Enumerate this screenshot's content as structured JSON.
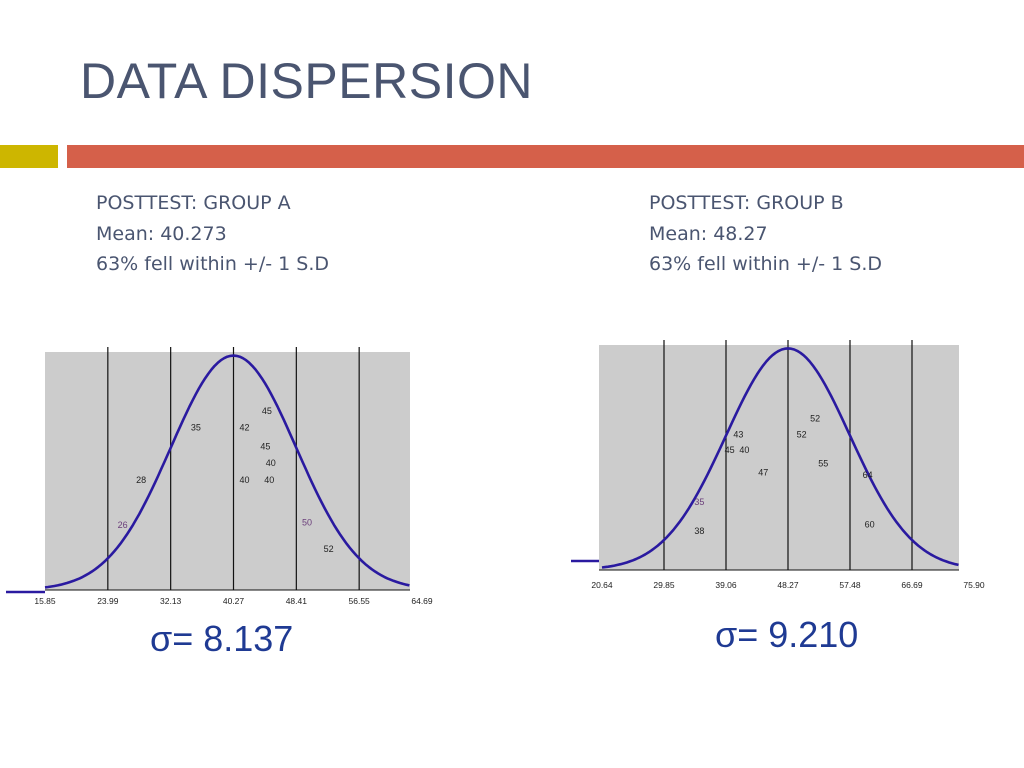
{
  "slide": {
    "title": "DATA DISPERSION"
  },
  "colors": {
    "title_text": "#4a5570",
    "accent_gold": "#cdb600",
    "accent_orange": "#d5604a",
    "plot_bg": "#cccccc",
    "curve": "#2a1aa0",
    "sigma_text": "#1f3a93"
  },
  "group_a": {
    "heading": "POSTTEST: GROUP A",
    "mean_label": "Mean: 40.273",
    "within_label": "63% fell within +/- 1 S.D",
    "sigma_label": "σ= 8.137"
  },
  "group_b": {
    "heading": "POSTTEST: GROUP B",
    "mean_label": "Mean: 48.27",
    "within_label": "63% fell within +/- 1 S.D",
    "sigma_label": "σ= 9.210"
  },
  "chart_data": [
    {
      "type": "line",
      "description_of_series": "normal distribution curve with plotted scores",
      "mean": 40.27,
      "sd": 8.137,
      "xlim": [
        15.85,
        64.69
      ],
      "tick_labels": [
        "15.85",
        "23.99",
        "32.13",
        "40.27",
        "48.41",
        "56.55",
        "64.69"
      ],
      "tick_values": [
        15.85,
        23.99,
        32.13,
        40.27,
        48.41,
        56.55,
        64.69
      ],
      "vertical_lines": [
        23.99,
        32.13,
        40.27,
        48.41,
        56.55
      ],
      "scores": [
        {
          "label": "26",
          "x": 25.9,
          "y": 0.26,
          "color": "#6a3d7a"
        },
        {
          "label": "28",
          "x": 28.3,
          "y": 0.45,
          "color": "#222222"
        },
        {
          "label": "35",
          "x": 35.4,
          "y": 0.67,
          "color": "#222222"
        },
        {
          "label": "42",
          "x": 41.7,
          "y": 0.67,
          "color": "#222222"
        },
        {
          "label": "45",
          "x": 44.6,
          "y": 0.74,
          "color": "#222222"
        },
        {
          "label": "45",
          "x": 44.4,
          "y": 0.59,
          "color": "#222222"
        },
        {
          "label": "40",
          "x": 45.1,
          "y": 0.52,
          "color": "#222222"
        },
        {
          "label": "40",
          "x": 41.7,
          "y": 0.45,
          "color": "#222222"
        },
        {
          "label": "40",
          "x": 44.9,
          "y": 0.45,
          "color": "#222222"
        },
        {
          "label": "50",
          "x": 49.8,
          "y": 0.27,
          "color": "#6a3d7a"
        },
        {
          "label": "52",
          "x": 52.6,
          "y": 0.16,
          "color": "#222222"
        }
      ]
    },
    {
      "type": "line",
      "description_of_series": "normal distribution curve with plotted scores",
      "mean": 48.27,
      "sd": 9.21,
      "xlim": [
        20.64,
        75.9
      ],
      "tick_labels": [
        "20.64",
        "29.85",
        "39.06",
        "48.27",
        "57.48",
        "66.69",
        "75.90"
      ],
      "tick_values": [
        20.64,
        29.85,
        39.06,
        48.27,
        57.48,
        66.69,
        75.9
      ],
      "vertical_lines": [
        29.85,
        39.06,
        48.27,
        57.48,
        66.69
      ],
      "scores": [
        {
          "label": "35",
          "x": 35.1,
          "y": 0.29,
          "color": "#6a3d7a"
        },
        {
          "label": "38",
          "x": 35.1,
          "y": 0.16,
          "color": "#222222"
        },
        {
          "label": "43",
          "x": 40.9,
          "y": 0.59,
          "color": "#222222"
        },
        {
          "label": "45",
          "x": 39.6,
          "y": 0.52,
          "color": "#222222"
        },
        {
          "label": "40",
          "x": 41.8,
          "y": 0.52,
          "color": "#222222"
        },
        {
          "label": "47",
          "x": 44.6,
          "y": 0.42,
          "color": "#222222"
        },
        {
          "label": "52",
          "x": 50.3,
          "y": 0.59,
          "color": "#222222"
        },
        {
          "label": "52",
          "x": 52.3,
          "y": 0.66,
          "color": "#222222"
        },
        {
          "label": "55",
          "x": 53.5,
          "y": 0.46,
          "color": "#222222"
        },
        {
          "label": "64",
          "x": 60.1,
          "y": 0.41,
          "color": "#222222"
        },
        {
          "label": "60",
          "x": 60.4,
          "y": 0.19,
          "color": "#222222"
        }
      ]
    }
  ]
}
